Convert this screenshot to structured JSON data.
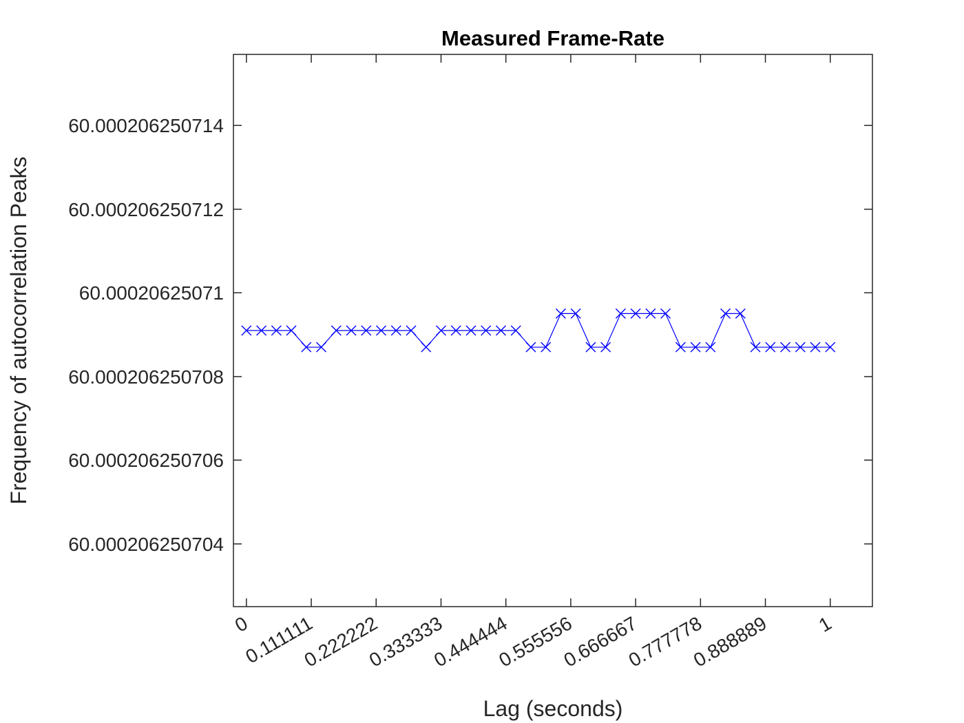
{
  "chart_data": {
    "type": "line",
    "title": "Measured Frame-Rate",
    "xlabel": "Lag (seconds)",
    "ylabel": "Frequency of autocorrelation Peaks",
    "x_tick_values": [
      0,
      0.111111,
      0.222222,
      0.333333,
      0.444444,
      0.555556,
      0.666667,
      0.777778,
      0.888889,
      1
    ],
    "x_tick_labels": [
      "0",
      "0.111111",
      "0.222222",
      "0.333333",
      "0.444444",
      "0.555556",
      "0.666667",
      "0.777778",
      "0.888889",
      "1"
    ],
    "y_tick_values": [
      60.000206250704,
      60.000206250706,
      60.000206250708,
      60.00020625071,
      60.000206250712,
      60.000206250714
    ],
    "y_tick_labels": [
      "60.000206250704",
      "60.000206250706",
      "60.000206250708",
      "60.00020625071",
      "60.000206250712",
      "60.000206250714"
    ],
    "xlim": [
      -0.0222222,
      1.0722222
    ],
    "ylim": [
      60.0002062507025,
      60.0002062507157
    ],
    "grid": false,
    "series": [
      {
        "color": "#0000ff",
        "marker": "x",
        "x": [
          0,
          0.025641,
          0.051282,
          0.076923,
          0.102564,
          0.128205,
          0.153846,
          0.179487,
          0.205128,
          0.230769,
          0.25641,
          0.282051,
          0.307692,
          0.333333,
          0.358974,
          0.384615,
          0.410256,
          0.435897,
          0.461538,
          0.487179,
          0.512821,
          0.538462,
          0.564103,
          0.589744,
          0.615385,
          0.641026,
          0.666667,
          0.692308,
          0.717949,
          0.74359,
          0.769231,
          0.794872,
          0.820513,
          0.846154,
          0.871795,
          0.897436,
          0.923077,
          0.948718,
          0.974359,
          1
        ],
        "y": [
          60.0002062507091,
          60.0002062507091,
          60.0002062507091,
          60.0002062507091,
          60.0002062507087,
          60.0002062507087,
          60.0002062507091,
          60.0002062507091,
          60.0002062507091,
          60.0002062507091,
          60.0002062507091,
          60.0002062507091,
          60.0002062507087,
          60.0002062507091,
          60.0002062507091,
          60.0002062507091,
          60.0002062507091,
          60.0002062507091,
          60.0002062507091,
          60.0002062507087,
          60.0002062507087,
          60.0002062507095,
          60.0002062507095,
          60.0002062507087,
          60.0002062507087,
          60.0002062507095,
          60.0002062507095,
          60.0002062507095,
          60.0002062507095,
          60.0002062507087,
          60.0002062507087,
          60.0002062507087,
          60.0002062507095,
          60.0002062507095,
          60.0002062507087,
          60.0002062507087,
          60.0002062507087,
          60.0002062507087,
          60.0002062507087,
          60.0002062507087
        ]
      }
    ]
  }
}
